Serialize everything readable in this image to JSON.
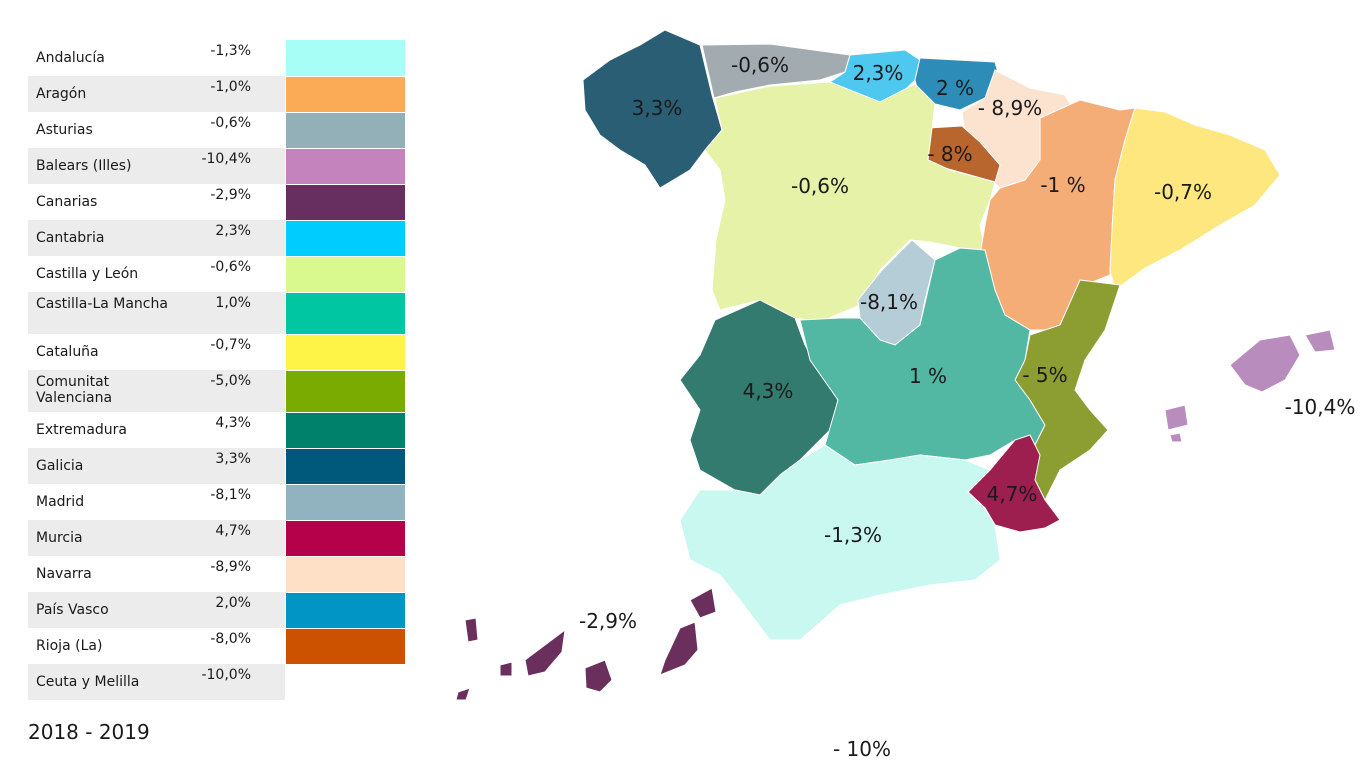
{
  "legend": {
    "rows": [
      {
        "name": "Andalucía",
        "value": "-1,3%",
        "color": "#a6fef6"
      },
      {
        "name": "Aragón",
        "value": "-1,0%",
        "color": "#fbaa55"
      },
      {
        "name": "Asturias",
        "value": "-0,6%",
        "color": "#93b0b8"
      },
      {
        "name": "Balears (Illes)",
        "value": "-10,4%",
        "color": "#c483bd"
      },
      {
        "name": "Canarias",
        "value": "-2,9%",
        "color": "#672f5f"
      },
      {
        "name": "Cantabria",
        "value": "2,3%",
        "color": "#00cdfe"
      },
      {
        "name": "Castilla y León",
        "value": "-0,6%",
        "color": "#d9f98e"
      },
      {
        "name": "Castilla-La Mancha",
        "value": "1,0%",
        "color": "#00c7a1"
      },
      {
        "name": "Cataluña",
        "value": "-0,7%",
        "color": "#fef448"
      },
      {
        "name": "Comunitat Valenciana",
        "value": "-5,0%",
        "color": "#7aab00"
      },
      {
        "name": "Extremadura",
        "value": "4,3%",
        "color": "#00816b"
      },
      {
        "name": "Galicia",
        "value": "3,3%",
        "color": "#00587a"
      },
      {
        "name": "Madrid",
        "value": "-8,1%",
        "color": "#91b3bf"
      },
      {
        "name": "Murcia",
        "value": "4,7%",
        "color": "#b5004a"
      },
      {
        "name": "Navarra",
        "value": "-8,9%",
        "color": "#fde0c6"
      },
      {
        "name": "País Vasco",
        "value": "2,0%",
        "color": "#0095c4"
      },
      {
        "name": "Rioja (La)",
        "value": "-8,0%",
        "color": "#cd5200"
      },
      {
        "name": "Ceuta y Melilla",
        "value": "-10,0%",
        "color": ""
      }
    ]
  },
  "period": "2018 - 2019",
  "map": {
    "labels": {
      "galicia": "3,3%",
      "asturias": "-0,6%",
      "cantabria": "2,3%",
      "pais_vasco": "2 %",
      "navarra": "- 8,9%",
      "rioja": "- 8%",
      "castilla_leon": "-0,6%",
      "aragon": "-1 %",
      "cataluna": "-0,7%",
      "madrid": "-8,1%",
      "extremadura": "4,3%",
      "castilla_mancha": "1 %",
      "valenciana": "- 5%",
      "murcia": "4,7%",
      "andalucia": "-1,3%",
      "baleares": "-10,4%",
      "canarias": "-2,9%",
      "ceuta_melilla": "- 10%"
    },
    "colors": {
      "galicia": "#2a5e74",
      "asturias": "#a2acb0",
      "cantabria": "#4fc8f0",
      "pais_vasco": "#2d8cb8",
      "navarra": "#fbe3cf",
      "rioja": "#b8652e",
      "castilla_leon": "#e5f2a8",
      "aragon": "#f5ad78",
      "cataluna": "#fde77e",
      "madrid": "#b5cdd6",
      "extremadura": "#327b6e",
      "castilla_mancha": "#52b8a3",
      "valenciana": "#8c9d32",
      "murcia": "#9c1f4f",
      "andalucia": "#c9f8f1",
      "baleares": "#b88cbc",
      "canarias": "#6b2f5e"
    }
  }
}
